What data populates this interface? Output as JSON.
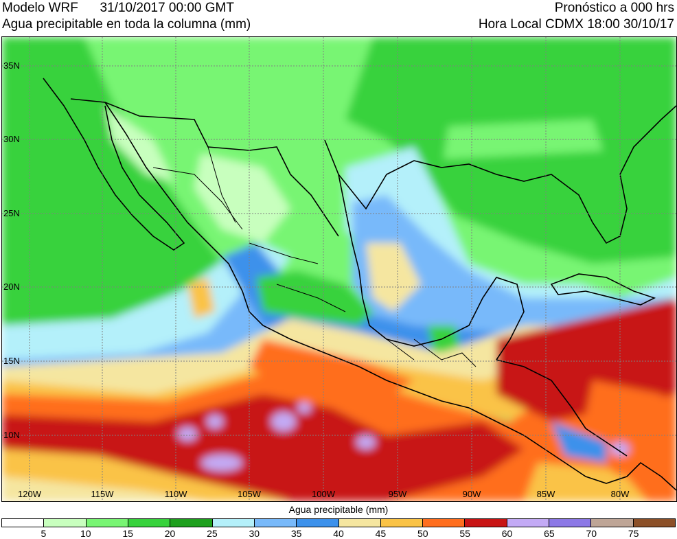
{
  "header": {
    "model": "Modelo WRF",
    "valid_time": "31/10/2017 00:00 GMT",
    "variable": "Agua precipitable en toda la columna (mm)",
    "forecast": "Pronóstico a 000 hrs",
    "local_time": "Hora Local CDMX 18:00 30/10/17"
  },
  "map": {
    "lat_labels": [
      "35N",
      "30N",
      "25N",
      "20N",
      "15N",
      "10N"
    ],
    "lon_labels": [
      "120W",
      "115W",
      "110W",
      "105W",
      "100W",
      "95W",
      "90W",
      "85W",
      "80W"
    ],
    "land_border_color": "#000000",
    "grid_color": "#808080"
  },
  "colorbar": {
    "title": "Agua precipitable (mm)",
    "ticks": [
      "5",
      "10",
      "15",
      "20",
      "25",
      "30",
      "35",
      "40",
      "45",
      "50",
      "55",
      "60",
      "65",
      "70",
      "75"
    ],
    "colors": [
      "#ffffff",
      "#c8ffbe",
      "#78f573",
      "#37d23c",
      "#1ea01e",
      "#b4f0fa",
      "#78b9fa",
      "#3c91eb",
      "#f5e6a0",
      "#fac346",
      "#ff6e1e",
      "#c81414",
      "#c3aaf5",
      "#8c78e6",
      "#bea596",
      "#8c5028"
    ]
  }
}
